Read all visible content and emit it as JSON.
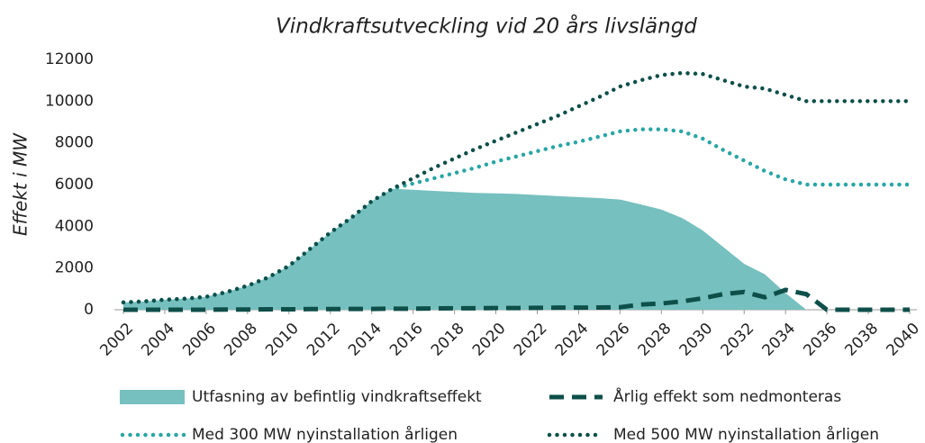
{
  "chart_data": {
    "type": "line",
    "title": "Vindkraftsutveckling vid 20 års livslängd",
    "y_label": "Effekt i MW",
    "x": [
      2002,
      2003,
      2004,
      2005,
      2006,
      2007,
      2008,
      2009,
      2010,
      2011,
      2012,
      2013,
      2014,
      2015,
      2016,
      2017,
      2018,
      2019,
      2020,
      2021,
      2022,
      2023,
      2024,
      2025,
      2026,
      2027,
      2028,
      2029,
      2030,
      2031,
      2032,
      2033,
      2034,
      2035,
      2036,
      2037,
      2038,
      2039,
      2040
    ],
    "xlim": [
      2002,
      2040
    ],
    "xticks": [
      2002,
      2004,
      2006,
      2008,
      2010,
      2012,
      2014,
      2016,
      2018,
      2020,
      2022,
      2024,
      2026,
      2028,
      2030,
      2032,
      2034,
      2036,
      2038,
      2040
    ],
    "ylim": [
      0,
      12000
    ],
    "yticks": [
      0,
      2000,
      4000,
      6000,
      8000,
      10000,
      12000
    ],
    "grid": false,
    "series": [
      {
        "name": "Utfasning av befintlig vindkraftseffekt",
        "style": "area",
        "color": "#76c0bf",
        "values": [
          350,
          400,
          480,
          530,
          620,
          850,
          1150,
          1550,
          2100,
          2900,
          3700,
          4400,
          5200,
          5800,
          5750,
          5700,
          5650,
          5600,
          5580,
          5550,
          5500,
          5450,
          5400,
          5350,
          5280,
          5050,
          4800,
          4400,
          3800,
          3000,
          2200,
          1700,
          800,
          0,
          null,
          null,
          null,
          null,
          null
        ]
      },
      {
        "name": "Årlig effekt som nedmonteras",
        "style": "dashed",
        "color": "#0e4f4a",
        "values": [
          0,
          0,
          0,
          0,
          0,
          10,
          10,
          20,
          20,
          30,
          30,
          40,
          40,
          50,
          50,
          60,
          70,
          70,
          80,
          80,
          90,
          100,
          100,
          110,
          120,
          250,
          300,
          400,
          550,
          750,
          850,
          600,
          950,
          750,
          0,
          0,
          0,
          0,
          0
        ]
      },
      {
        "name": "Med 300 MW nyinstallation årligen",
        "style": "dotted",
        "color": "#2aa6a4",
        "values": [
          350,
          400,
          480,
          530,
          620,
          850,
          1150,
          1550,
          2100,
          2900,
          3700,
          4400,
          5200,
          5800,
          6050,
          6300,
          6550,
          6800,
          7100,
          7350,
          7600,
          7850,
          8050,
          8300,
          8550,
          8650,
          8650,
          8550,
          8200,
          7650,
          7150,
          6650,
          6250,
          6000,
          6000,
          6000,
          6000,
          6000,
          6000
        ]
      },
      {
        "name": "Med 500 MW nyinstallation årligen",
        "style": "dotted",
        "color": "#0e4f4a",
        "values": [
          350,
          400,
          480,
          530,
          620,
          850,
          1150,
          1550,
          2100,
          2900,
          3700,
          4400,
          5200,
          5800,
          6300,
          6800,
          7250,
          7700,
          8100,
          8500,
          8900,
          9300,
          9750,
          10200,
          10700,
          11000,
          11250,
          11350,
          11300,
          11000,
          10700,
          10600,
          10300,
          10000,
          10000,
          10000,
          10000,
          10000,
          10000
        ]
      }
    ]
  }
}
